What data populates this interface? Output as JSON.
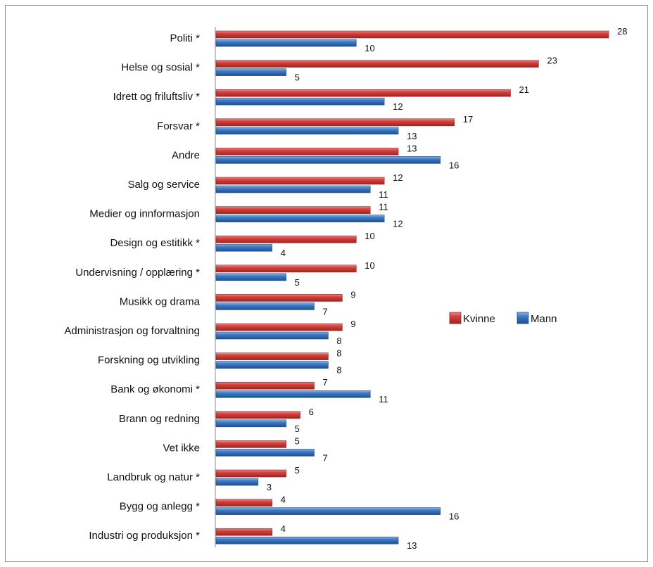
{
  "chart_data": {
    "type": "bar",
    "orientation": "horizontal",
    "categories": [
      "Politi *",
      "Helse og sosial *",
      "Idrett og friluftsliv *",
      "Forsvar *",
      "Andre",
      "Salg og service",
      "Medier og innformasjon",
      "Design og estitikk *",
      "Undervisning / opplæring *",
      "Musikk og drama",
      "Administrasjon og forvaltning",
      "Forskning og utvikling",
      "Bank og økonomi *",
      "Brann og redning",
      "Vet ikke",
      "Landbruk og natur *",
      "Bygg og anlegg *",
      "Industri og produksjon *"
    ],
    "series": [
      {
        "name": "Kvinne",
        "color": "#d03c3a",
        "values": [
          28,
          23,
          21,
          17,
          13,
          12,
          11,
          10,
          10,
          9,
          9,
          8,
          7,
          6,
          5,
          5,
          4,
          4
        ]
      },
      {
        "name": "Mann",
        "color": "#3d78c4",
        "values": [
          10,
          5,
          12,
          13,
          16,
          11,
          12,
          4,
          5,
          7,
          8,
          8,
          11,
          5,
          7,
          3,
          16,
          13
        ]
      }
    ],
    "xlim": [
      0,
      28
    ],
    "legend": "right",
    "grid": false
  }
}
